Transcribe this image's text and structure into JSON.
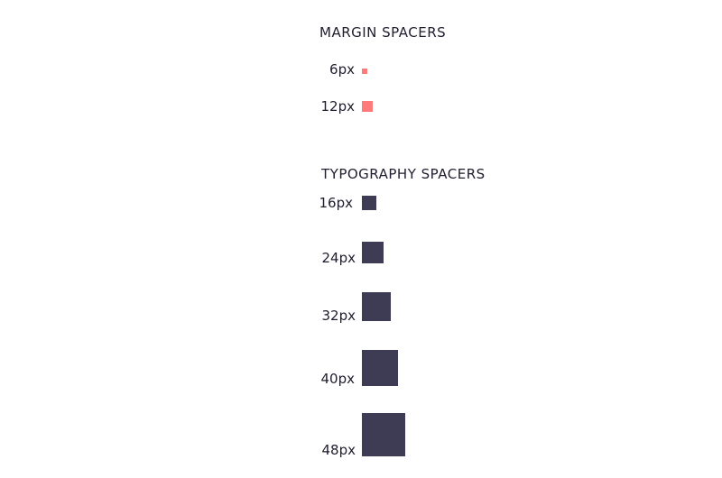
{
  "margin_section": {
    "title": "MARGIN SPACERS",
    "items": [
      {
        "label": "6px",
        "size": 6,
        "color": "#ff7a7a"
      },
      {
        "label": "12px",
        "size": 12,
        "color": "#ff7a7a"
      }
    ]
  },
  "typography_section": {
    "title": "TYPOGRAPHY SPACERS",
    "items": [
      {
        "label": "16px",
        "size": 16,
        "color": "#3e3b55"
      },
      {
        "label": "24px",
        "size": 24,
        "color": "#3e3b55"
      },
      {
        "label": "32px",
        "size": 32,
        "color": "#3e3b55"
      },
      {
        "label": "40px",
        "size": 40,
        "color": "#3e3b55"
      },
      {
        "label": "48px",
        "size": 48,
        "color": "#3e3b55"
      }
    ]
  }
}
